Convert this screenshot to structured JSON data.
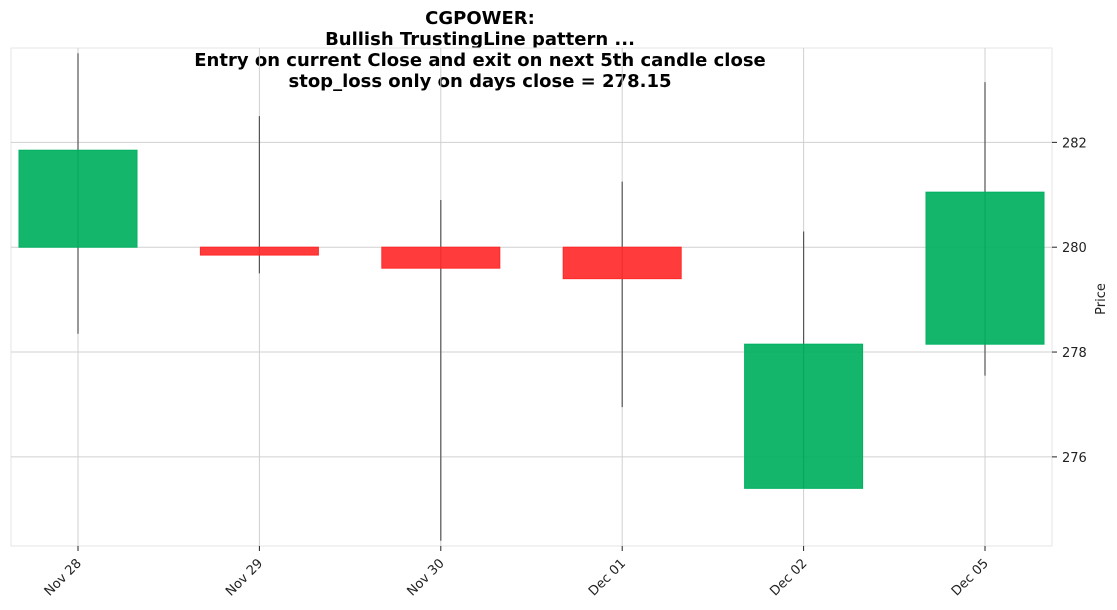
{
  "chart_data": {
    "type": "candlestick",
    "title_lines": [
      "CGPOWER:",
      "Bullish TrustingLine pattern ...",
      "Entry on current Close and exit on next 5th candle close",
      "stop_loss only on days close = 278.15"
    ],
    "ylabel": "Price",
    "ylim": [
      274.3,
      283.8
    ],
    "yticks": [
      276,
      278,
      280,
      282
    ],
    "grid": true,
    "candles": [
      {
        "date": "Nov 28",
        "open": 280.0,
        "high": 283.7,
        "low": 278.35,
        "close": 281.85
      },
      {
        "date": "Nov 29",
        "open": 280.0,
        "high": 282.5,
        "low": 279.5,
        "close": 279.85
      },
      {
        "date": "Nov 30",
        "open": 280.0,
        "high": 280.9,
        "low": 274.4,
        "close": 279.6
      },
      {
        "date": "Dec 01",
        "open": 280.0,
        "high": 281.25,
        "low": 276.95,
        "close": 279.4
      },
      {
        "date": "Dec 02",
        "open": 275.4,
        "high": 280.3,
        "low": 275.4,
        "close": 278.15
      },
      {
        "date": "Dec 05",
        "open": 278.15,
        "high": 283.15,
        "low": 277.55,
        "close": 281.05
      }
    ],
    "colors": {
      "up": "#00b060",
      "down": "#ff2a2a",
      "wick": "#555555",
      "grid": "#d0d0d0"
    }
  }
}
